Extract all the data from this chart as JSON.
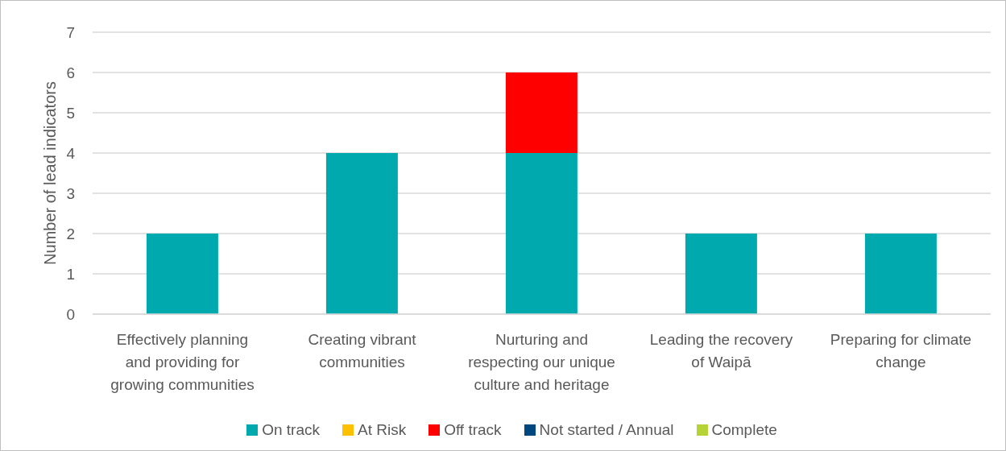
{
  "chart_data": {
    "type": "bar",
    "stacked": true,
    "ylabel": "Number of lead indicators",
    "categories": [
      "Effectively planning and providing for growing communities",
      "Creating vibrant communities",
      "Nurturing and respecting our unique culture and heritage",
      "Leading the recovery of Waipā",
      "Preparing for climate change"
    ],
    "series": [
      {
        "name": "On track",
        "color": "#00a9ad",
        "values": [
          2,
          4,
          4,
          2,
          2
        ]
      },
      {
        "name": "At Risk",
        "color": "#ffc000",
        "values": [
          0,
          0,
          0,
          0,
          0
        ]
      },
      {
        "name": "Off track",
        "color": "#ff0000",
        "values": [
          0,
          0,
          2,
          0,
          0
        ]
      },
      {
        "name": "Not started / Annual",
        "color": "#00467f",
        "values": [
          0,
          0,
          0,
          0,
          0
        ]
      },
      {
        "name": "Complete",
        "color": "#b5d334",
        "values": [
          0,
          0,
          0,
          0,
          0
        ]
      }
    ],
    "ylim": [
      0,
      7
    ],
    "yticks": [
      0,
      1,
      2,
      3,
      4,
      5,
      6,
      7
    ],
    "grid": "y",
    "legend": "bottom"
  }
}
